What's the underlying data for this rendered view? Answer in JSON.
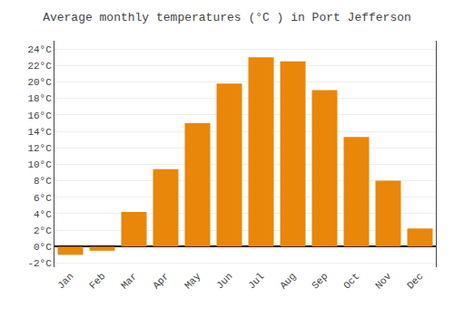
{
  "chart_data": {
    "type": "bar",
    "title": "Average monthly temperatures (°C ) in Port Jefferson",
    "categories": [
      "Jan",
      "Feb",
      "Mar",
      "Apr",
      "May",
      "Jun",
      "Jul",
      "Aug",
      "Sep",
      "Oct",
      "Nov",
      "Dec"
    ],
    "values": [
      -1.0,
      -0.5,
      4.2,
      9.4,
      15.0,
      19.8,
      23.0,
      22.5,
      19.0,
      13.3,
      8.0,
      2.2
    ],
    "color": "#E8870A",
    "ylim": [
      -2.5,
      25
    ],
    "yticks": [
      {
        "value": -2,
        "label": "-2°C"
      },
      {
        "value": 0,
        "label": "0°C"
      },
      {
        "value": 2,
        "label": "2°C"
      },
      {
        "value": 4,
        "label": "4°C"
      },
      {
        "value": 6,
        "label": "6°C"
      },
      {
        "value": 8,
        "label": "8°C"
      },
      {
        "value": 10,
        "label": "10°C"
      },
      {
        "value": 12,
        "label": "12°C"
      },
      {
        "value": 14,
        "label": "14°C"
      },
      {
        "value": 16,
        "label": "16°C"
      },
      {
        "value": 18,
        "label": "18°C"
      },
      {
        "value": 20,
        "label": "20°C"
      },
      {
        "value": 22,
        "label": "22°C"
      },
      {
        "value": 24,
        "label": "24°C"
      }
    ],
    "grid": true
  }
}
